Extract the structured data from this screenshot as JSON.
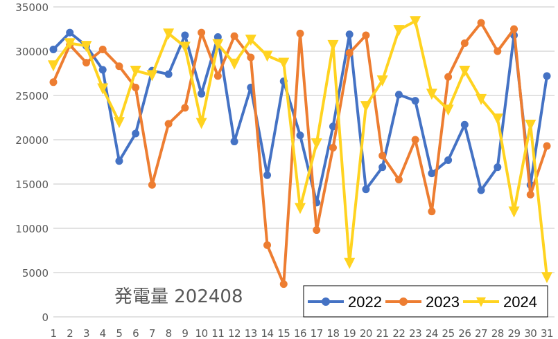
{
  "chart_data": {
    "type": "line",
    "title": "発電量 202408",
    "xlabel": "",
    "ylabel": "",
    "ylim": [
      0,
      35000
    ],
    "yticks": [
      0,
      5000,
      10000,
      15000,
      20000,
      25000,
      30000,
      35000
    ],
    "grid": true,
    "legend_position": "bottom-right inside",
    "categories": [
      "1",
      "2",
      "3",
      "4",
      "5",
      "6",
      "7",
      "8",
      "9",
      "10",
      "11",
      "12",
      "13",
      "14",
      "15",
      "16",
      "17",
      "18",
      "19",
      "20",
      "21",
      "22",
      "23",
      "24",
      "25",
      "26",
      "27",
      "28",
      "29",
      "30",
      "31"
    ],
    "series": [
      {
        "name": "2022",
        "color": "#4472C4",
        "marker": "circle",
        "values": [
          30200,
          32100,
          30600,
          27900,
          17600,
          20700,
          27800,
          27400,
          31800,
          25200,
          31600,
          19800,
          25900,
          16000,
          26600,
          20500,
          12900,
          21500,
          31900,
          14400,
          16900,
          25100,
          24400,
          16200,
          17700,
          21700,
          14300,
          16900,
          31800,
          14900,
          27200
        ]
      },
      {
        "name": "2023",
        "color": "#ED7D31",
        "marker": "circle",
        "values": [
          26500,
          30700,
          28700,
          30200,
          28300,
          25900,
          14900,
          21800,
          23600,
          32100,
          27200,
          31700,
          29300,
          8100,
          3700,
          32000,
          9800,
          19100,
          29800,
          31800,
          18200,
          15500,
          20000,
          11900,
          27100,
          30900,
          33200,
          30000,
          32500,
          13800,
          19300
        ]
      },
      {
        "name": "2024",
        "color": "#FFD320",
        "marker": "triangle-down",
        "values": [
          28400,
          30900,
          30600,
          25800,
          22000,
          27800,
          27300,
          32000,
          30500,
          21900,
          30800,
          28600,
          31300,
          29500,
          28700,
          12300,
          19600,
          30700,
          6100,
          23800,
          26700,
          32400,
          33400,
          25200,
          23400,
          27800,
          24600,
          22400,
          11900,
          21700,
          4500
        ]
      }
    ]
  },
  "legend": {
    "items": [
      {
        "label": "2022",
        "color": "#4472C4"
      },
      {
        "label": "2023",
        "color": "#ED7D31"
      },
      {
        "label": "2024",
        "color": "#FFD320"
      }
    ]
  },
  "colors": {
    "grid": "#D9D9D9",
    "axis_text": "#595959",
    "background": "#FFFFFF"
  }
}
